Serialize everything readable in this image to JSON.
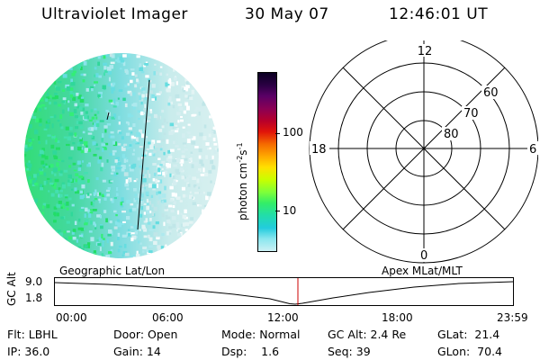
{
  "header": {
    "instrument": "Ultraviolet Imager",
    "date": "30 May 07",
    "time": "12:46:01 UT"
  },
  "colorbar": {
    "label": "photon cm-2s-1",
    "ticks": [
      "100",
      "10"
    ],
    "colors": [
      "#0b0022",
      "#2b0044",
      "#5a0066",
      "#8a0055",
      "#b8002a",
      "#e0140a",
      "#f56a00",
      "#ffaa00",
      "#ffe000",
      "#c8ff00",
      "#7dff3a",
      "#33ee66",
      "#22ddaa",
      "#22ccdd",
      "#88e6ee",
      "#ccf0f4"
    ]
  },
  "polar": {
    "labels": {
      "top": "12",
      "left": "18",
      "right": "6",
      "bottom": "0"
    },
    "rings": [
      "60",
      "70",
      "80"
    ]
  },
  "timeline": {
    "left_label": "Geographic Lat/Lon",
    "right_label": "Apex MLat/MLT",
    "axis_label": "GC Alt",
    "y_ticks": [
      "9.0",
      "1.8"
    ],
    "x_ticks": [
      "00:00",
      "06:00",
      "12:00",
      "18:00",
      "23:59"
    ],
    "marker_color": "#cc0000"
  },
  "status": {
    "flt": "Flt: LBHL",
    "ip": "IP: 36.0",
    "door": "Door: Open",
    "gain": "Gain: 14",
    "mode": "Mode: Normal",
    "dsp": "Dsp:    1.6",
    "gcalt": "GC Alt: 2.4 Re",
    "seq": "Seq: 39",
    "glat": "GLat:  21.4",
    "glon": "GLon:  70.4"
  }
}
